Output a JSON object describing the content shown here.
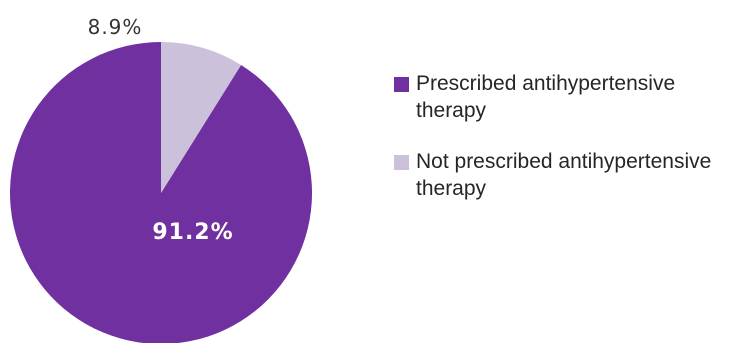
{
  "chart_data": {
    "type": "pie",
    "slices": [
      {
        "label": "Prescribed antihypertensive therapy",
        "value": 91.2,
        "display": "91.2%",
        "color": "#7030a0",
        "label_color": "#ffffff"
      },
      {
        "label": "Not prescribed antihypertensive therapy",
        "value": 8.9,
        "display": "8.9%",
        "color": "#ccc1da",
        "label_color": "#333333"
      }
    ],
    "legend_position": "right"
  }
}
